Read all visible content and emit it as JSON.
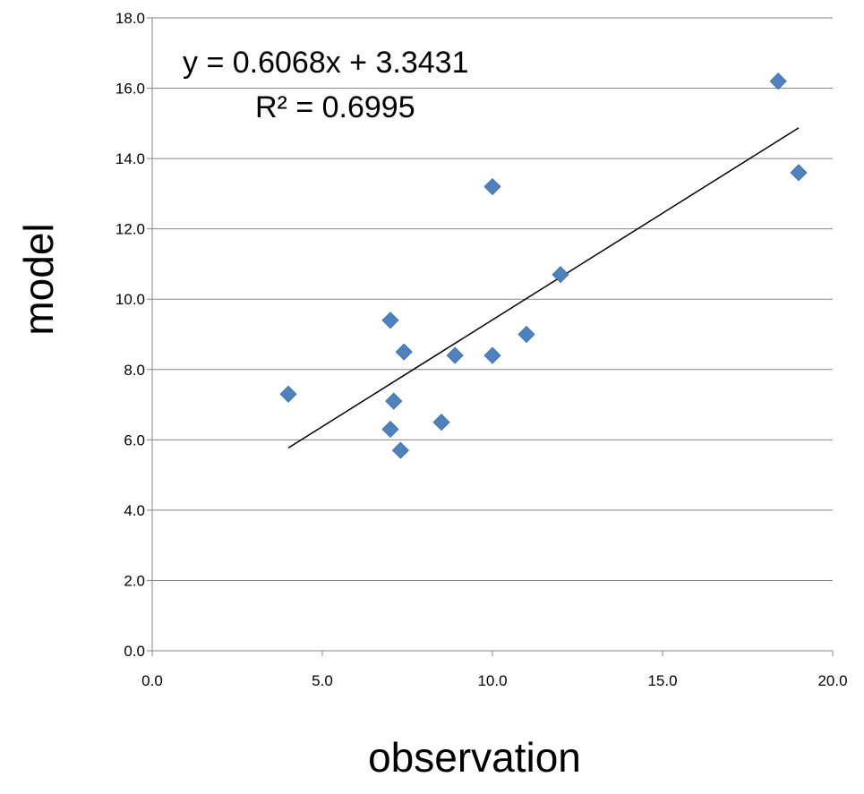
{
  "chart_data": {
    "type": "scatter",
    "xlabel": "observation",
    "ylabel": "model",
    "xlim": [
      0,
      20
    ],
    "ylim": [
      0,
      18
    ],
    "x_ticks": [
      "0.0",
      "5.0",
      "10.0",
      "15.0",
      "20.0"
    ],
    "y_ticks": [
      "0.0",
      "2.0",
      "4.0",
      "6.0",
      "8.0",
      "10.0",
      "12.0",
      "14.0",
      "16.0",
      "18.0"
    ],
    "grid": {
      "horizontal": true,
      "vertical": false
    },
    "legend": "none",
    "marker": "diamond",
    "marker_color": "#4F81BD",
    "points": [
      {
        "x": 4.0,
        "y": 7.3
      },
      {
        "x": 7.0,
        "y": 9.4
      },
      {
        "x": 7.1,
        "y": 7.1
      },
      {
        "x": 7.0,
        "y": 6.3
      },
      {
        "x": 7.3,
        "y": 5.7
      },
      {
        "x": 7.4,
        "y": 8.5
      },
      {
        "x": 8.5,
        "y": 6.5
      },
      {
        "x": 8.9,
        "y": 8.4
      },
      {
        "x": 10.0,
        "y": 8.4
      },
      {
        "x": 10.0,
        "y": 13.2
      },
      {
        "x": 11.0,
        "y": 9.0
      },
      {
        "x": 12.0,
        "y": 10.7
      },
      {
        "x": 18.4,
        "y": 16.2
      },
      {
        "x": 19.0,
        "y": 13.6
      }
    ],
    "trendline": {
      "type": "linear",
      "slope": 0.6068,
      "intercept": 3.3431,
      "x_range": [
        4.0,
        19.0
      ],
      "equation": "y = 0.6068x + 3.3431",
      "r_squared": "R² = 0.6995",
      "color": "#000000"
    }
  }
}
